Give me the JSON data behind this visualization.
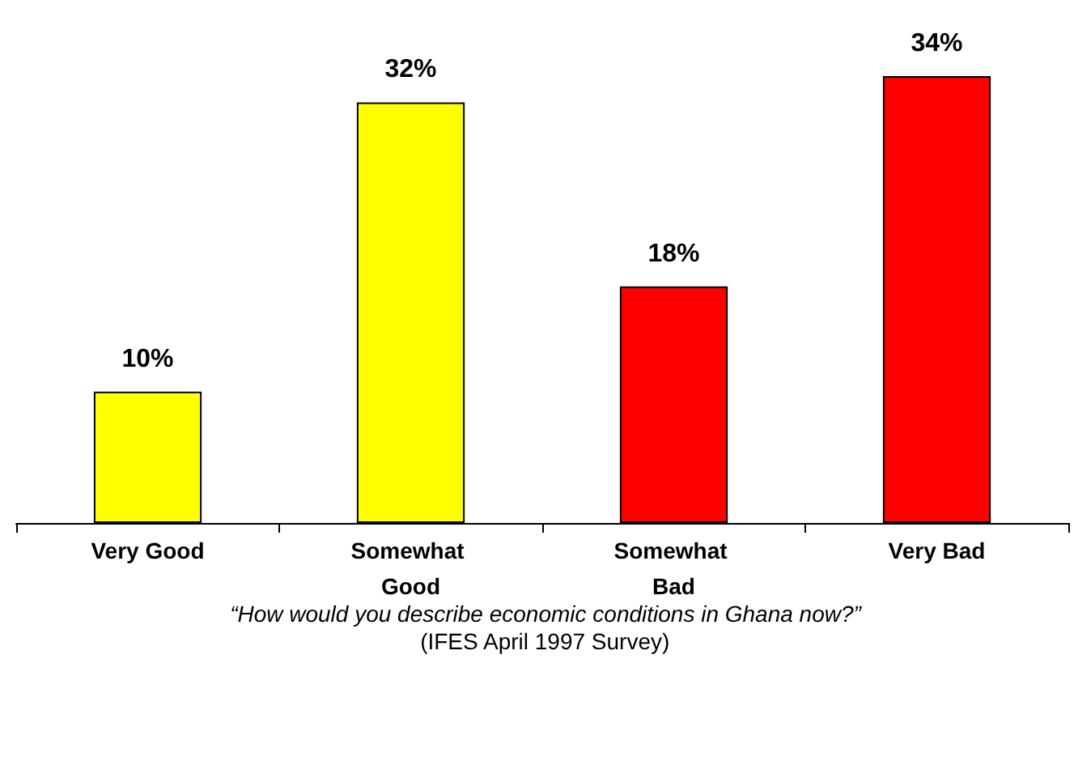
{
  "chart_data": {
    "type": "bar",
    "categories": [
      "Very Good",
      "Somewhat Good",
      "Somewhat Bad",
      "Very Bad"
    ],
    "values": [
      10,
      32,
      18,
      34
    ],
    "colors": [
      "#ffff00",
      "#ffff00",
      "#ff0000",
      "#ff0000"
    ],
    "value_labels": [
      "10%",
      "32%",
      "18%",
      "34%"
    ],
    "grid": false,
    "annotations": [
      "“How would you describe economic conditions in Ghana now?”",
      "(IFES April 1997 Survey)"
    ]
  }
}
